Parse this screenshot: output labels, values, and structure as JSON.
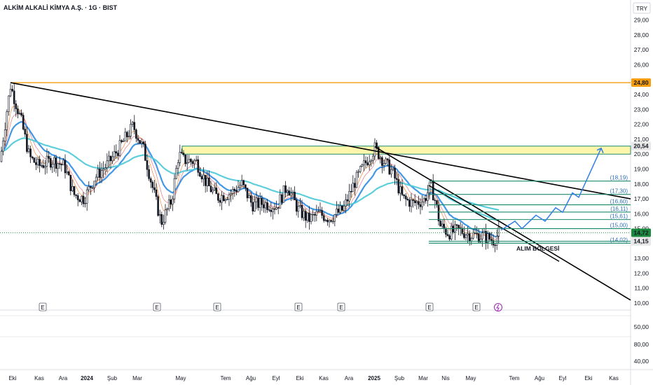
{
  "header": {
    "title": "ALKİM ALKALİ KİMYA A.Ş. · 1G · BIST",
    "currency": "TRY"
  },
  "chart_data": {
    "type": "candlestick",
    "price_axis": {
      "ticks": [
        "29,00",
        "28,00",
        "27,00",
        "26,00",
        "24,00",
        "23,00",
        "22,00",
        "21,00",
        "20,00",
        "19,00",
        "18,00",
        "17,00",
        "16,00",
        "15,00",
        "13,00",
        "12,00",
        "11,00",
        "10,00"
      ],
      "tick_values": [
        29,
        28,
        27,
        26,
        24,
        23,
        22,
        21,
        20,
        19,
        18,
        17,
        16,
        15,
        13,
        12,
        11,
        10
      ],
      "ylim": [
        10,
        29.8
      ]
    },
    "indicator_axis": {
      "ticks": [
        "50,00",
        "80,00",
        "40,00"
      ]
    },
    "time_axis": {
      "ticks": [
        "Eki",
        "Kas",
        "Ara",
        "2024",
        "Şub",
        "Mar",
        "May",
        "Tem",
        "Ağu",
        "Eyl",
        "Eki",
        "Kas",
        "Ara",
        "2025",
        "Şub",
        "Mar",
        "Nis",
        "May",
        "Tem",
        "Ağu",
        "Eyl",
        "Eki",
        "Kas"
      ],
      "bold": [
        "2024",
        "2025"
      ]
    },
    "price_tags": [
      {
        "text": "24,80",
        "value": 24.8,
        "bg": "#f59d0b",
        "fg": "#131722"
      },
      {
        "text": "20,54",
        "value": 20.54,
        "bg": "#e9e8e8",
        "fg": "#131722"
      },
      {
        "text": "14,72",
        "value": 14.72,
        "bg": "#1b8a3f",
        "fg": "#ffffff"
      },
      {
        "text": "14,15",
        "value": 14.15,
        "bg": "#e9e8e8",
        "fg": "#131722"
      }
    ],
    "levels": [
      {
        "label": "(18,19)",
        "value": 18.19
      },
      {
        "label": "(17,30)",
        "value": 17.3
      },
      {
        "label": "(16,60)",
        "value": 16.6
      },
      {
        "label": "(16,11)",
        "value": 16.11
      },
      {
        "label": "(15,61)",
        "value": 15.61
      },
      {
        "label": "(15,00)",
        "value": 15.0
      },
      {
        "label": "(14,02)",
        "value": 14.02
      }
    ],
    "annotations": {
      "buy_zone": "ALIM BÖLGESİ",
      "resistance": 24.8,
      "zone": [
        20.0,
        20.54
      ]
    },
    "earnings_marks": [
      "E",
      "E",
      "E",
      "E",
      "E",
      "E",
      "E"
    ],
    "colors": {
      "resistance": "#f59d0b",
      "zone_fill": "#fff59d",
      "levels": "#1b8a6b",
      "projection": "#2f7ee6",
      "trend": "#000000",
      "ma_fast": "#f58c3b",
      "ma_mid": "#2f8de3",
      "ma_slow": "#4ec9d8",
      "candle": "#131722"
    }
  }
}
